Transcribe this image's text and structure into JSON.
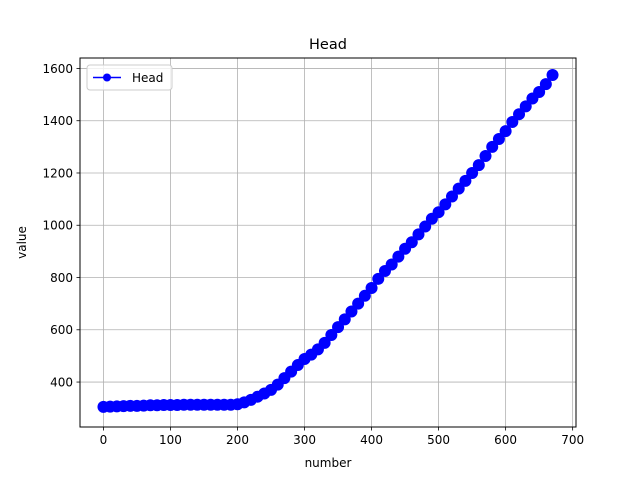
{
  "chart_data": {
    "type": "line",
    "title": "Head",
    "xlabel": "number",
    "ylabel": "value",
    "xlim": [
      -35,
      705
    ],
    "ylim": [
      228,
      1640
    ],
    "xticks": [
      0,
      100,
      200,
      300,
      400,
      500,
      600,
      700
    ],
    "yticks": [
      400,
      600,
      800,
      1000,
      1200,
      1400,
      1600
    ],
    "grid": true,
    "legend_position": "upper-left",
    "series": [
      {
        "name": "Head",
        "color": "#0000ff",
        "marker": "circle",
        "x": [
          0,
          10,
          20,
          30,
          40,
          50,
          60,
          70,
          80,
          90,
          100,
          110,
          120,
          130,
          140,
          150,
          160,
          170,
          180,
          190,
          200,
          210,
          220,
          230,
          240,
          250,
          260,
          270,
          280,
          290,
          300,
          310,
          320,
          330,
          340,
          350,
          360,
          370,
          380,
          390,
          400,
          410,
          420,
          430,
          440,
          450,
          460,
          470,
          480,
          490,
          500,
          510,
          520,
          530,
          540,
          550,
          560,
          570,
          580,
          590,
          600,
          610,
          620,
          630,
          640,
          650,
          660,
          670
        ],
        "y": [
          305,
          306,
          307,
          308,
          309,
          309,
          310,
          311,
          311,
          312,
          312,
          312,
          313,
          313,
          313,
          313,
          313,
          313,
          313,
          313,
          315,
          322,
          332,
          344,
          356,
          370,
          390,
          415,
          440,
          465,
          488,
          505,
          525,
          550,
          580,
          610,
          640,
          670,
          700,
          730,
          760,
          795,
          825,
          850,
          880,
          910,
          935,
          965,
          995,
          1025,
          1050,
          1080,
          1110,
          1140,
          1170,
          1200,
          1230,
          1265,
          1300,
          1330,
          1360,
          1395,
          1425,
          1455,
          1485,
          1510,
          1540,
          1575
        ]
      }
    ]
  }
}
